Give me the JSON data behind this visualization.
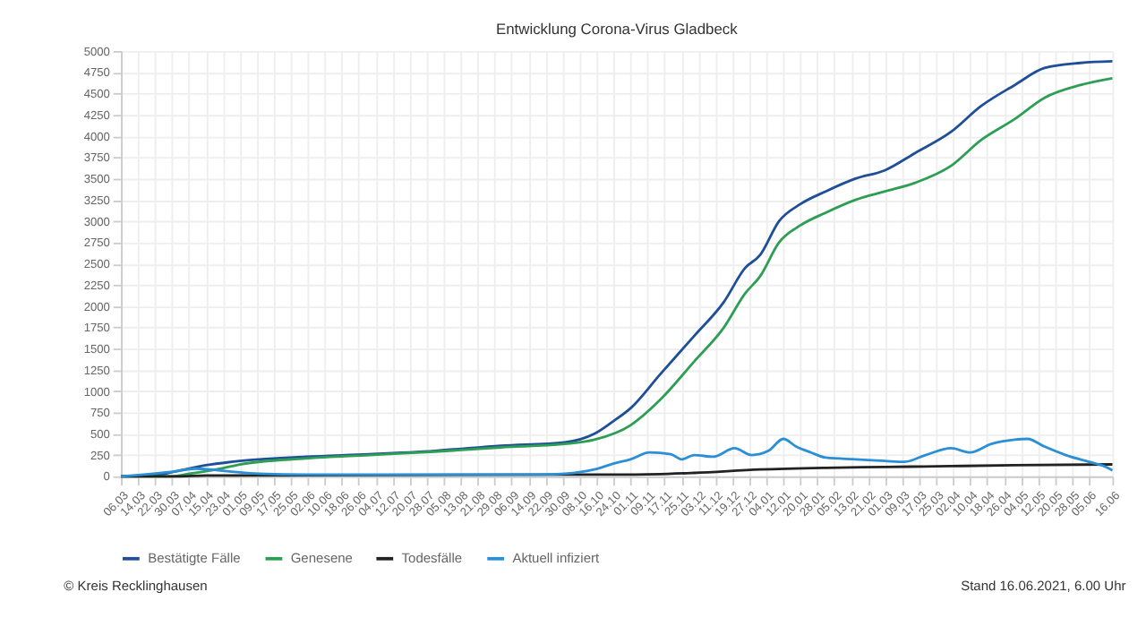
{
  "chart_data": {
    "type": "line",
    "title": "Entwicklung Corona-Virus Gladbeck",
    "annotations": [
      "© Kreis Recklinghausen",
      "Stand 16.06.2021, 6.00 Uhr"
    ],
    "xlim": [
      "2020-03-06",
      "2021-06-16"
    ],
    "xticks": [
      {
        "value": "2020-03-06",
        "label": "06.03"
      },
      {
        "value": "2020-03-14",
        "label": "14.03"
      },
      {
        "value": "2020-03-22",
        "label": "22.03"
      },
      {
        "value": "2020-03-30",
        "label": "30.03"
      },
      {
        "value": "2020-04-07",
        "label": "07.04"
      },
      {
        "value": "2020-04-15",
        "label": "15.04"
      },
      {
        "value": "2020-04-23",
        "label": "23.04"
      },
      {
        "value": "2020-05-01",
        "label": "01.05"
      },
      {
        "value": "2020-05-09",
        "label": "09.05"
      },
      {
        "value": "2020-05-17",
        "label": "17.05"
      },
      {
        "value": "2020-05-25",
        "label": "25.05"
      },
      {
        "value": "2020-06-02",
        "label": "02.06"
      },
      {
        "value": "2020-06-10",
        "label": "10.06"
      },
      {
        "value": "2020-06-18",
        "label": "18.06"
      },
      {
        "value": "2020-06-26",
        "label": "26.06"
      },
      {
        "value": "2020-07-04",
        "label": "04.07"
      },
      {
        "value": "2020-07-12",
        "label": "12.07"
      },
      {
        "value": "2020-07-20",
        "label": "20.07"
      },
      {
        "value": "2020-07-28",
        "label": "28.07"
      },
      {
        "value": "2020-08-05",
        "label": "05.08"
      },
      {
        "value": "2020-08-13",
        "label": "13.08"
      },
      {
        "value": "2020-08-21",
        "label": "21.08"
      },
      {
        "value": "2020-08-29",
        "label": "29.08"
      },
      {
        "value": "2020-09-06",
        "label": "06.09"
      },
      {
        "value": "2020-09-14",
        "label": "14.09"
      },
      {
        "value": "2020-09-22",
        "label": "22.09"
      },
      {
        "value": "2020-09-30",
        "label": "30.09"
      },
      {
        "value": "2020-10-08",
        "label": "08.10"
      },
      {
        "value": "2020-10-16",
        "label": "16.10"
      },
      {
        "value": "2020-10-24",
        "label": "24.10"
      },
      {
        "value": "2020-11-01",
        "label": "01.11"
      },
      {
        "value": "2020-11-09",
        "label": "09.11"
      },
      {
        "value": "2020-11-17",
        "label": "17.11"
      },
      {
        "value": "2020-11-25",
        "label": "25.11"
      },
      {
        "value": "2020-12-03",
        "label": "03.12"
      },
      {
        "value": "2020-12-11",
        "label": "11.12"
      },
      {
        "value": "2020-12-19",
        "label": "19.12"
      },
      {
        "value": "2020-12-27",
        "label": "27.12"
      },
      {
        "value": "2021-01-04",
        "label": "04.01"
      },
      {
        "value": "2021-01-12",
        "label": "12.01"
      },
      {
        "value": "2021-01-20",
        "label": "20.01"
      },
      {
        "value": "2021-01-28",
        "label": "28.01"
      },
      {
        "value": "2021-02-05",
        "label": "05.02"
      },
      {
        "value": "2021-02-13",
        "label": "13.02"
      },
      {
        "value": "2021-02-21",
        "label": "21.02"
      },
      {
        "value": "2021-03-01",
        "label": "01.03"
      },
      {
        "value": "2021-03-09",
        "label": "09.03"
      },
      {
        "value": "2021-03-17",
        "label": "17.03"
      },
      {
        "value": "2021-03-25",
        "label": "25.03"
      },
      {
        "value": "2021-04-02",
        "label": "02.04"
      },
      {
        "value": "2021-04-10",
        "label": "10.04"
      },
      {
        "value": "2021-04-18",
        "label": "18.04"
      },
      {
        "value": "2021-04-26",
        "label": "26.04"
      },
      {
        "value": "2021-05-04",
        "label": "04.05"
      },
      {
        "value": "2021-05-12",
        "label": "12.05"
      },
      {
        "value": "2021-05-20",
        "label": "20.05"
      },
      {
        "value": "2021-05-28",
        "label": "28.05"
      },
      {
        "value": "2021-06-05",
        "label": "05.06"
      },
      {
        "value": "2021-06-16",
        "label": "16.06"
      }
    ],
    "ylim": [
      0,
      5000
    ],
    "yticks": [
      0,
      250,
      500,
      750,
      1000,
      1250,
      1500,
      1750,
      2000,
      2250,
      2500,
      2750,
      3000,
      3250,
      3500,
      3750,
      4000,
      4250,
      4500,
      4750,
      5000
    ],
    "grid": true,
    "legend": "bottom",
    "marker": "none",
    "line_style": "solid",
    "series": [
      {
        "name": "Bestätigte Fälle",
        "color": "#1f4f96",
        "x": [
          "2020-03-06",
          "2020-03-22",
          "2020-04-01",
          "2020-04-15",
          "2020-05-01",
          "2020-06-01",
          "2020-07-01",
          "2020-08-01",
          "2020-09-01",
          "2020-10-01",
          "2020-10-15",
          "2020-10-24",
          "2020-11-01",
          "2020-11-15",
          "2020-12-01",
          "2020-12-15",
          "2020-12-25",
          "2021-01-01",
          "2021-01-10",
          "2021-01-20",
          "2021-02-01",
          "2021-02-15",
          "2021-03-01",
          "2021-03-15",
          "2021-04-01",
          "2021-04-15",
          "2021-05-01",
          "2021-05-15",
          "2021-06-01",
          "2021-06-16"
        ],
        "values": [
          0,
          10,
          60,
          130,
          180,
          230,
          260,
          300,
          360,
          400,
          500,
          650,
          800,
          1200,
          1650,
          2050,
          2450,
          2600,
          3000,
          3200,
          3350,
          3500,
          3600,
          3800,
          4050,
          4350,
          4600,
          4800,
          4860,
          4880
        ]
      },
      {
        "name": "Genesene",
        "color": "#2f9e55",
        "x": [
          "2020-03-06",
          "2020-03-30",
          "2020-04-07",
          "2020-04-20",
          "2020-05-01",
          "2020-06-01",
          "2020-07-01",
          "2020-08-01",
          "2020-09-01",
          "2020-10-01",
          "2020-10-15",
          "2020-11-01",
          "2020-11-15",
          "2020-12-01",
          "2020-12-15",
          "2020-12-25",
          "2021-01-01",
          "2021-01-10",
          "2021-01-20",
          "2021-02-01",
          "2021-02-15",
          "2021-03-01",
          "2021-03-15",
          "2021-04-01",
          "2021-04-15",
          "2021-05-01",
          "2021-05-15",
          "2021-06-01",
          "2021-06-16"
        ],
        "values": [
          0,
          0,
          30,
          80,
          140,
          210,
          250,
          290,
          340,
          380,
          430,
          600,
          900,
          1350,
          1750,
          2150,
          2350,
          2750,
          2950,
          3100,
          3250,
          3350,
          3450,
          3650,
          3950,
          4200,
          4450,
          4600,
          4680
        ]
      },
      {
        "name": "Todesfälle",
        "color": "#222222",
        "x": [
          "2020-03-06",
          "2020-04-01",
          "2020-04-15",
          "2020-10-01",
          "2020-11-01",
          "2020-12-01",
          "2021-01-01",
          "2021-02-01",
          "2021-03-01",
          "2021-04-01",
          "2021-05-01",
          "2021-06-16"
        ],
        "values": [
          0,
          0,
          10,
          20,
          20,
          40,
          80,
          100,
          110,
          120,
          130,
          140
        ]
      },
      {
        "name": "Aktuell infiziert",
        "color": "#2b8fd6",
        "x": [
          "2020-03-06",
          "2020-04-01",
          "2020-04-10",
          "2020-04-25",
          "2020-05-10",
          "2020-06-01",
          "2020-07-01",
          "2020-08-01",
          "2020-09-01",
          "2020-09-20",
          "2020-10-01",
          "2020-10-15",
          "2020-10-24",
          "2020-11-01",
          "2020-11-10",
          "2020-11-20",
          "2020-11-25",
          "2020-12-01",
          "2020-12-10",
          "2020-12-20",
          "2020-12-28",
          "2021-01-05",
          "2021-01-12",
          "2021-01-18",
          "2021-01-25",
          "2021-02-01",
          "2021-02-15",
          "2021-03-01",
          "2021-03-10",
          "2021-03-20",
          "2021-04-01",
          "2021-04-10",
          "2021-04-20",
          "2021-05-01",
          "2021-05-07",
          "2021-05-15",
          "2021-05-25",
          "2021-06-05",
          "2021-06-12",
          "2021-06-16"
        ],
        "values": [
          0,
          60,
          90,
          60,
          30,
          20,
          20,
          20,
          20,
          20,
          30,
          80,
          150,
          200,
          280,
          260,
          200,
          250,
          230,
          330,
          250,
          300,
          440,
          350,
          280,
          220,
          200,
          180,
          170,
          250,
          330,
          280,
          380,
          430,
          440,
          350,
          250,
          170,
          120,
          70
        ]
      }
    ]
  }
}
